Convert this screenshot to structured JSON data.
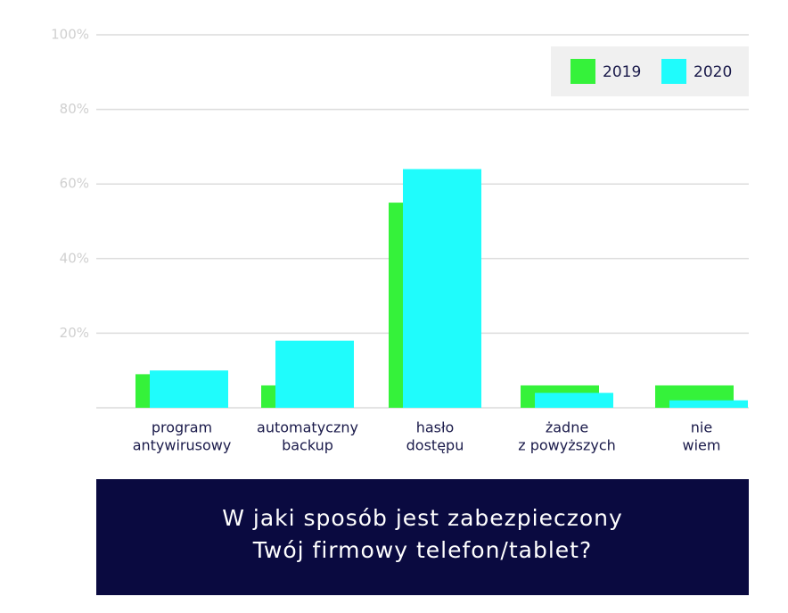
{
  "chart_data": {
    "type": "bar",
    "title": [
      "W jaki sposób jest zabezpieczony",
      "Twój firmowy telefon/tablet?"
    ],
    "categories": [
      [
        "program",
        "antywirusowy"
      ],
      [
        "automatyczny",
        "backup"
      ],
      [
        "hasło",
        "dostępu"
      ],
      [
        "żadne",
        "z powyższych"
      ],
      [
        "nie",
        "wiem"
      ]
    ],
    "series": [
      {
        "name": "2019",
        "color": "#35f23a",
        "values": [
          9,
          6,
          55,
          6,
          6
        ]
      },
      {
        "name": "2020",
        "color": "#1ffcfc",
        "values": [
          10,
          18,
          64,
          4,
          2
        ]
      }
    ],
    "ylim": [
      0,
      100
    ],
    "yticks": [
      {
        "value": 20,
        "label": "20%"
      },
      {
        "value": 40,
        "label": "40%"
      },
      {
        "value": 60,
        "label": "60%"
      },
      {
        "value": 80,
        "label": "80%"
      },
      {
        "value": 100,
        "label": "100%"
      }
    ],
    "grid": true,
    "legend": "top-right"
  }
}
